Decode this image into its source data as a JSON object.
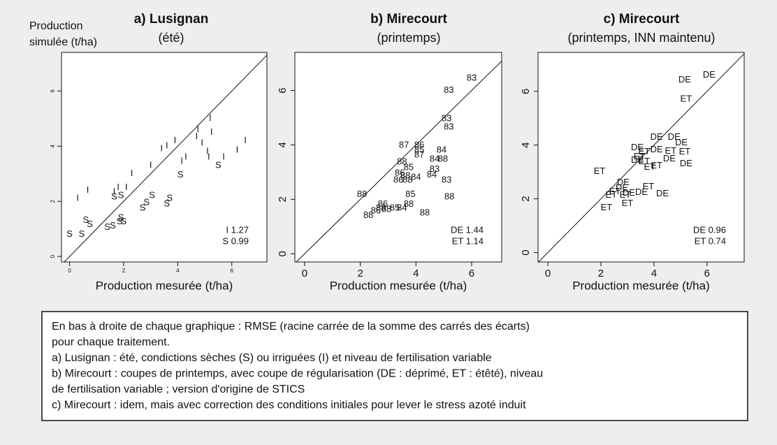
{
  "chart_data": [
    {
      "type": "scatter",
      "title": "a) Lusignan",
      "subtitle": "(été)",
      "y_label": [
        "Production",
        "simulée (t/ha)"
      ],
      "x_label": "Production mesurée (t/ha)",
      "xlim": [
        -0.3,
        7.3
      ],
      "ylim": [
        -0.2,
        7.4
      ],
      "xticks": [
        0,
        2,
        4,
        6
      ],
      "yticks": [
        0,
        2,
        4,
        6
      ],
      "small_ticks": true,
      "diagonal": true,
      "color": "#222222",
      "series": [
        {
          "name": "I",
          "x": [
            0.3,
            0.67,
            1.65,
            1.8,
            2.1,
            2.3,
            3.0,
            3.4,
            3.6,
            3.9,
            4.15,
            4.3,
            4.7,
            4.75,
            4.9,
            5.1,
            5.2,
            5.25,
            5.7,
            6.2,
            6.5,
            5.15
          ],
          "values": [
            2.1,
            2.4,
            2.33,
            2.5,
            2.5,
            3.0,
            3.3,
            3.9,
            4.0,
            4.2,
            3.45,
            3.6,
            4.35,
            4.6,
            4.1,
            3.8,
            5.0,
            4.5,
            3.6,
            3.85,
            4.2,
            3.6
          ]
        },
        {
          "name": "S",
          "x": [
            0,
            0.45,
            0.6,
            0.75,
            1.4,
            1.6,
            1.85,
            1.9,
            2.0,
            2.7,
            2.85,
            3.05,
            3.6,
            3.7,
            4.1,
            5.5,
            1.65,
            1.9
          ],
          "values": [
            0.8,
            0.8,
            1.3,
            1.15,
            1.05,
            1.1,
            1.25,
            1.4,
            1.25,
            1.75,
            1.95,
            2.2,
            1.9,
            2.1,
            2.95,
            3.3,
            2.15,
            2.2
          ]
        }
      ],
      "annotations": [
        "I 1.27",
        "S 0.99"
      ]
    },
    {
      "type": "scatter",
      "title": "b) Mirecourt",
      "subtitle": "(printemps)",
      "x_label": "Production mesurée (t/ha)",
      "xlim": [
        -0.35,
        7.08
      ],
      "ylim": [
        -0.3,
        7.4
      ],
      "xticks": [
        0,
        2,
        4,
        6
      ],
      "yticks": [
        0,
        2,
        4,
        6
      ],
      "small_ticks": false,
      "diagonal": true,
      "color": "#222222",
      "series": [
        {
          "labels": [
            "83",
            "83",
            "83",
            "83",
            "87",
            "86",
            "85",
            "87",
            "84",
            "84",
            "88",
            "88",
            "85",
            "86",
            "88",
            "84",
            "86",
            "88",
            "83",
            "84",
            "83",
            "85",
            "88",
            "88",
            "86",
            "88",
            "88",
            "85",
            "84",
            "86",
            "88",
            "88",
            "88"
          ],
          "x": [
            6.0,
            5.18,
            5.1,
            5.18,
            3.57,
            4.12,
            4.12,
            4.12,
            4.92,
            4.67,
            4.97,
            3.5,
            3.74,
            3.42,
            3.62,
            4.0,
            3.37,
            3.7,
            4.67,
            4.57,
            5.1,
            3.8,
            2.06,
            5.2,
            2.81,
            3.74,
            2.74,
            3.24,
            3.5,
            2.56,
            2.29,
            2.94,
            4.32
          ],
          "values": [
            6.45,
            6.0,
            4.96,
            4.65,
            3.98,
            3.98,
            3.8,
            3.62,
            3.8,
            3.47,
            3.47,
            3.37,
            3.16,
            2.96,
            2.85,
            2.8,
            2.7,
            2.7,
            3.1,
            2.9,
            2.7,
            2.18,
            2.18,
            2.08,
            1.82,
            1.82,
            1.67,
            1.67,
            1.67,
            1.57,
            1.41,
            1.62,
            1.49
          ]
        }
      ],
      "annotations": [
        "DE 1.44",
        "ET 1.14"
      ]
    },
    {
      "type": "scatter",
      "title": "c) Mirecourt",
      "subtitle": "(printemps, INN maintenu)",
      "x_label": "Production mesurée (t/ha)",
      "xlim": [
        -0.37,
        7.4
      ],
      "ylim": [
        -0.35,
        7.45
      ],
      "xticks": [
        0,
        2,
        4,
        6
      ],
      "yticks": [
        0,
        2,
        4,
        6
      ],
      "small_ticks": false,
      "diagonal": true,
      "color": "#222222",
      "series": [
        {
          "labels": [
            "DE",
            "DE",
            "ET",
            "DE",
            "DE",
            "DE",
            "DE",
            "ET",
            "DE",
            "ET",
            "ET",
            "ET",
            "DE",
            "ET",
            "ET",
            "DE",
            "DE",
            "ET",
            "ET",
            "DE",
            "DE",
            "ET",
            "DE",
            "DE",
            "ET",
            "DE",
            "ET",
            "ET",
            "ET",
            "ET"
          ],
          "x": [
            6.08,
            5.16,
            5.21,
            4.1,
            4.76,
            5.03,
            3.37,
            3.63,
            4.1,
            4.63,
            5.16,
            3.45,
            3.37,
            3.63,
            4.1,
            4.58,
            5.21,
            3.84,
            1.95,
            2.84,
            2.79,
            2.53,
            3.05,
            3.53,
            3.79,
            4.32,
            2.39,
            2.92,
            3.0,
            2.21
          ],
          "values": [
            6.6,
            6.42,
            5.71,
            4.29,
            4.29,
            4.08,
            3.9,
            3.74,
            3.82,
            3.77,
            3.74,
            3.56,
            3.43,
            3.38,
            3.22,
            3.48,
            3.3,
            3.17,
            3.01,
            2.6,
            2.39,
            2.26,
            2.21,
            2.23,
            2.44,
            2.18,
            2.13,
            2.13,
            1.82,
            1.66
          ]
        }
      ],
      "annotations": [
        "DE 0.96",
        "ET 0.74"
      ]
    }
  ],
  "caption": [
    "En bas à droite de chaque graphique : RMSE (racine carrée de la somme des carrés  des écarts)",
    "pour chaque traitement.",
    "a) Lusignan : été, condictions sèches (S) ou irriguées (I) et niveau de fertilisation variable",
    "b) Mirecourt : coupes de printemps, avec coupe de régularisation (DE : déprimé, ET : étêté), niveau",
    "de fertilisation variable ; version d'origine de STICS",
    "c) Mirecourt : idem, mais avec correction des conditions initiales pour lever le stress azoté induit"
  ]
}
